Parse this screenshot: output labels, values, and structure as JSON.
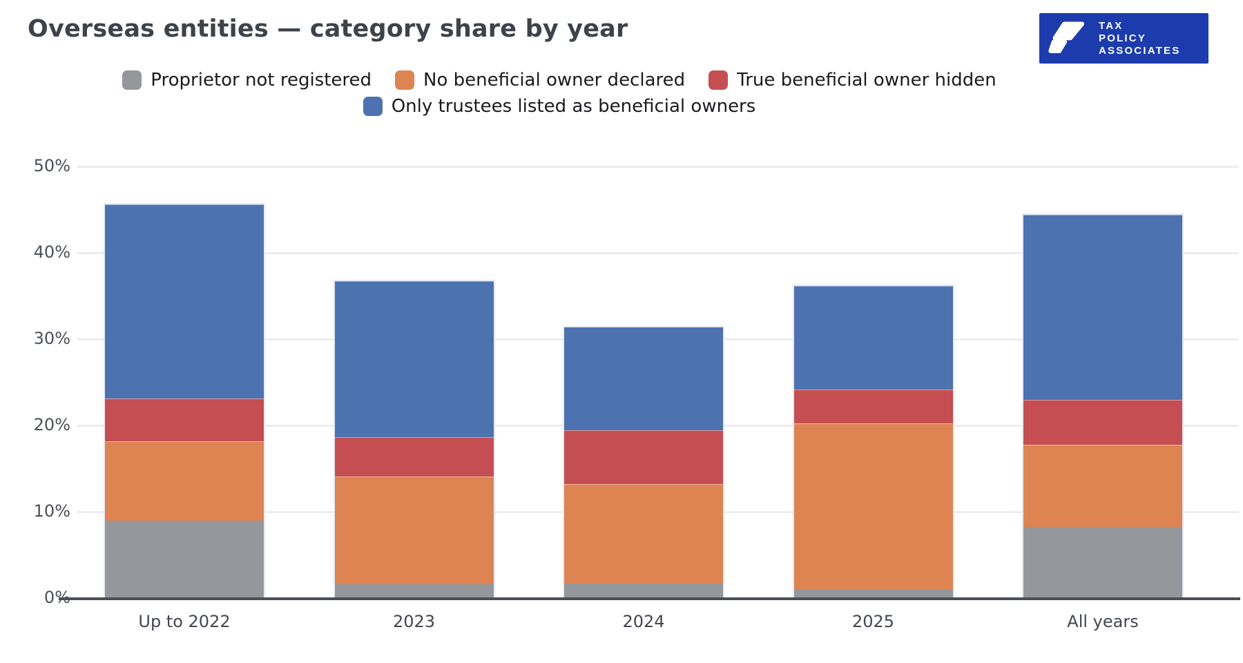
{
  "header": {
    "title": "Overseas entities — category share by year",
    "logo": {
      "line1": "TAX",
      "line2": "POLICY",
      "line3": "ASSOCIATES",
      "bg_color": "#1C3BAD"
    }
  },
  "chart_data": {
    "type": "bar",
    "stacked": true,
    "title": "Overseas entities — category share by year",
    "unit": "percent",
    "grid": "horizontal",
    "legend_position": "top-center",
    "categories": [
      "Up to 2022",
      "2023",
      "2024",
      "2025",
      "All years"
    ],
    "series": [
      {
        "name": "Proprietor not registered",
        "color": "#94989C",
        "values": [
          9.0,
          1.6,
          1.7,
          1.0,
          8.3
        ]
      },
      {
        "name": "No beneficial owner declared",
        "color": "#DD8452",
        "values": [
          9.2,
          12.5,
          11.5,
          19.3,
          9.5
        ]
      },
      {
        "name": "True beneficial owner hidden",
        "color": "#C44E52",
        "values": [
          4.9,
          4.5,
          6.2,
          3.9,
          5.1
        ]
      },
      {
        "name": "Only trustees listed as beneficial owners",
        "color": "#4C72B0",
        "values": [
          22.5,
          18.1,
          12.0,
          12.0,
          21.5
        ]
      }
    ],
    "stack_totals": [
      45.6,
      36.7,
      31.4,
      36.2,
      44.4
    ],
    "ylim": [
      0,
      50
    ],
    "yticks": [
      {
        "label": "0%",
        "value": 0
      },
      {
        "label": "10%",
        "value": 10
      },
      {
        "label": "20%",
        "value": 20
      },
      {
        "label": "30%",
        "value": 30
      },
      {
        "label": "40%",
        "value": 40
      },
      {
        "label": "50%",
        "value": 50
      }
    ],
    "legend_rows": [
      [
        0,
        1,
        2
      ],
      [
        3
      ]
    ]
  }
}
